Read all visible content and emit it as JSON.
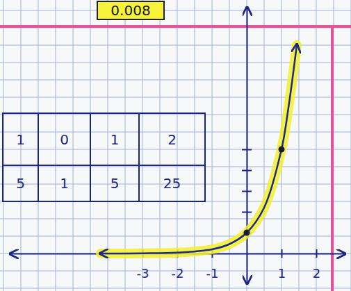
{
  "chart_data": {
    "type": "line",
    "annotations": [
      "0.008"
    ],
    "table": {
      "rows": [
        [
          "1",
          "0",
          "1",
          "2"
        ],
        [
          "5",
          "1",
          "5",
          "25"
        ]
      ]
    },
    "series": [
      {
        "type": "line",
        "color": "#1c2a80",
        "x": [
          -4.2,
          -3,
          -2,
          -1,
          -0.5,
          0,
          0.5,
          1,
          1.2,
          1.44
        ],
        "values": [
          0,
          0.01,
          0.04,
          0.2,
          0.45,
          1,
          2.2,
          5,
          7,
          10
        ]
      },
      {
        "type": "scatter",
        "marker": "circle",
        "color": "#1a1a2e",
        "x": [
          0,
          1
        ],
        "values": [
          1,
          5
        ]
      }
    ],
    "xlim": [
      -6.8,
      2.8
    ],
    "ylim": [
      -1.4,
      11.8
    ],
    "xticks": [
      -3,
      -2,
      -1,
      1,
      2
    ],
    "yticks": [
      1,
      2,
      3,
      4,
      5
    ],
    "tick_labels": "x"
  }
}
